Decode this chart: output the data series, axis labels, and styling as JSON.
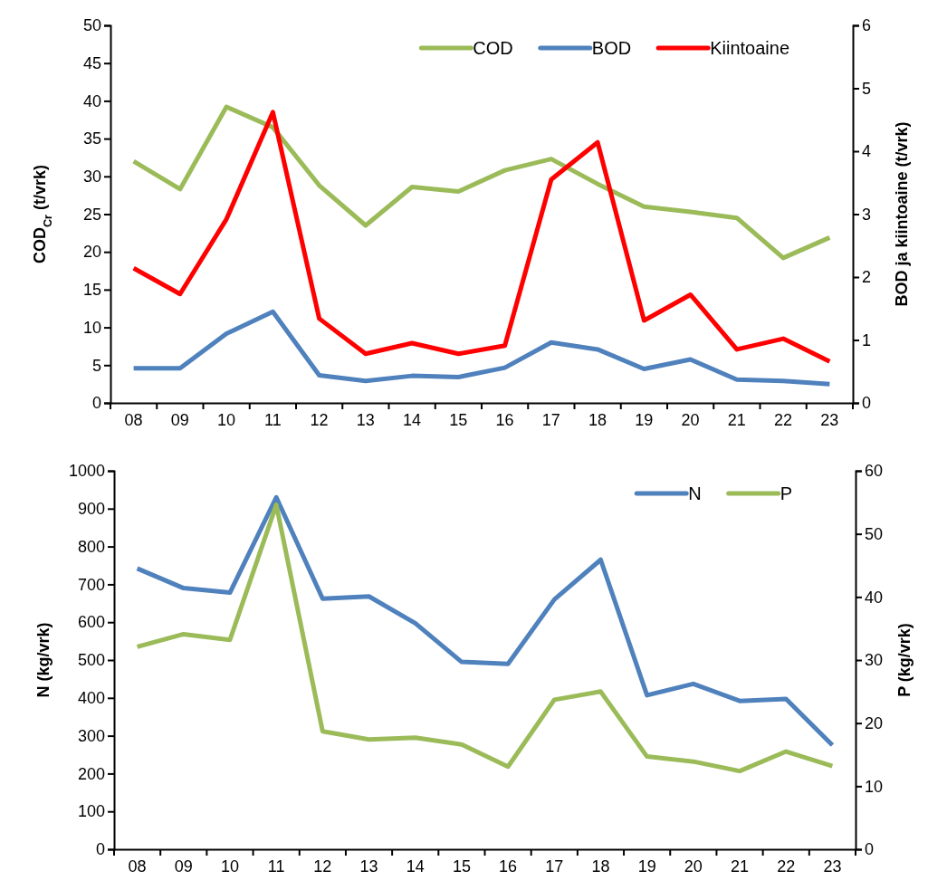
{
  "chart_data": [
    {
      "type": "line",
      "categories": [
        "08",
        "09",
        "10",
        "11",
        "12",
        "13",
        "14",
        "15",
        "16",
        "17",
        "18",
        "19",
        "20",
        "21",
        "22",
        "23"
      ],
      "ylabel": "COD$_{Cr}$ (t/vrk)",
      "y2label": "BOD ja kiintoaine (t/vrk)",
      "ylim": [
        0,
        50
      ],
      "yticks": [
        0,
        5,
        10,
        15,
        20,
        25,
        30,
        35,
        40,
        45,
        50
      ],
      "y2lim": [
        0,
        6
      ],
      "y2ticks": [
        0,
        1,
        2,
        3,
        4,
        5,
        6
      ],
      "legend": "top right",
      "grid": false,
      "series": [
        {
          "name": "COD",
          "color": "#9bbb59",
          "values": [
            32,
            28.3,
            39.2,
            36.5,
            28.8,
            23.5,
            28.6,
            28,
            30.8,
            32.3,
            29,
            26,
            25.3,
            24.5,
            19.2,
            21.9
          ]
        },
        {
          "name": "BOD",
          "color": "#4f81bd",
          "axis": "y2",
          "values": [
            0.55,
            0.55,
            1.1,
            1.45,
            0.44,
            0.35,
            0.43,
            0.41,
            0.56,
            0.96,
            0.85,
            0.54,
            0.69,
            0.37,
            0.35,
            0.3
          ]
        },
        {
          "name": "Kiintoaine",
          "color": "#ff0000",
          "axis": "y2",
          "values": [
            2.14,
            1.73,
            2.92,
            4.62,
            1.34,
            0.78,
            0.95,
            0.78,
            0.91,
            3.55,
            4.14,
            1.31,
            1.72,
            0.85,
            1.02,
            0.66
          ]
        }
      ]
    },
    {
      "type": "line",
      "categories": [
        "08",
        "09",
        "10",
        "11",
        "12",
        "13",
        "14",
        "15",
        "16",
        "17",
        "18",
        "19",
        "20",
        "21",
        "22",
        "23"
      ],
      "ylabel": "N (kg/vrk)",
      "y2label": "P (kg/vrk)",
      "ylim": [
        0,
        1000
      ],
      "yticks": [
        0,
        100,
        200,
        300,
        400,
        500,
        600,
        700,
        800,
        900,
        1000
      ],
      "y2lim": [
        0,
        60
      ],
      "y2ticks": [
        0,
        10,
        20,
        30,
        40,
        50,
        60
      ],
      "legend": "top right",
      "grid": false,
      "series": [
        {
          "name": "N",
          "color": "#4f81bd",
          "values": [
            742,
            690,
            678,
            930,
            662,
            668,
            597,
            495,
            490,
            660,
            765,
            407,
            437,
            392,
            397,
            275
          ]
        },
        {
          "name": "P",
          "color": "#9bbb59",
          "axis": "y2",
          "values": [
            32.1,
            34.1,
            33.2,
            54.6,
            18.7,
            17.4,
            17.7,
            16.6,
            13.1,
            23.7,
            25,
            14.7,
            13.9,
            12.4,
            15.5,
            13.2
          ]
        }
      ]
    }
  ]
}
